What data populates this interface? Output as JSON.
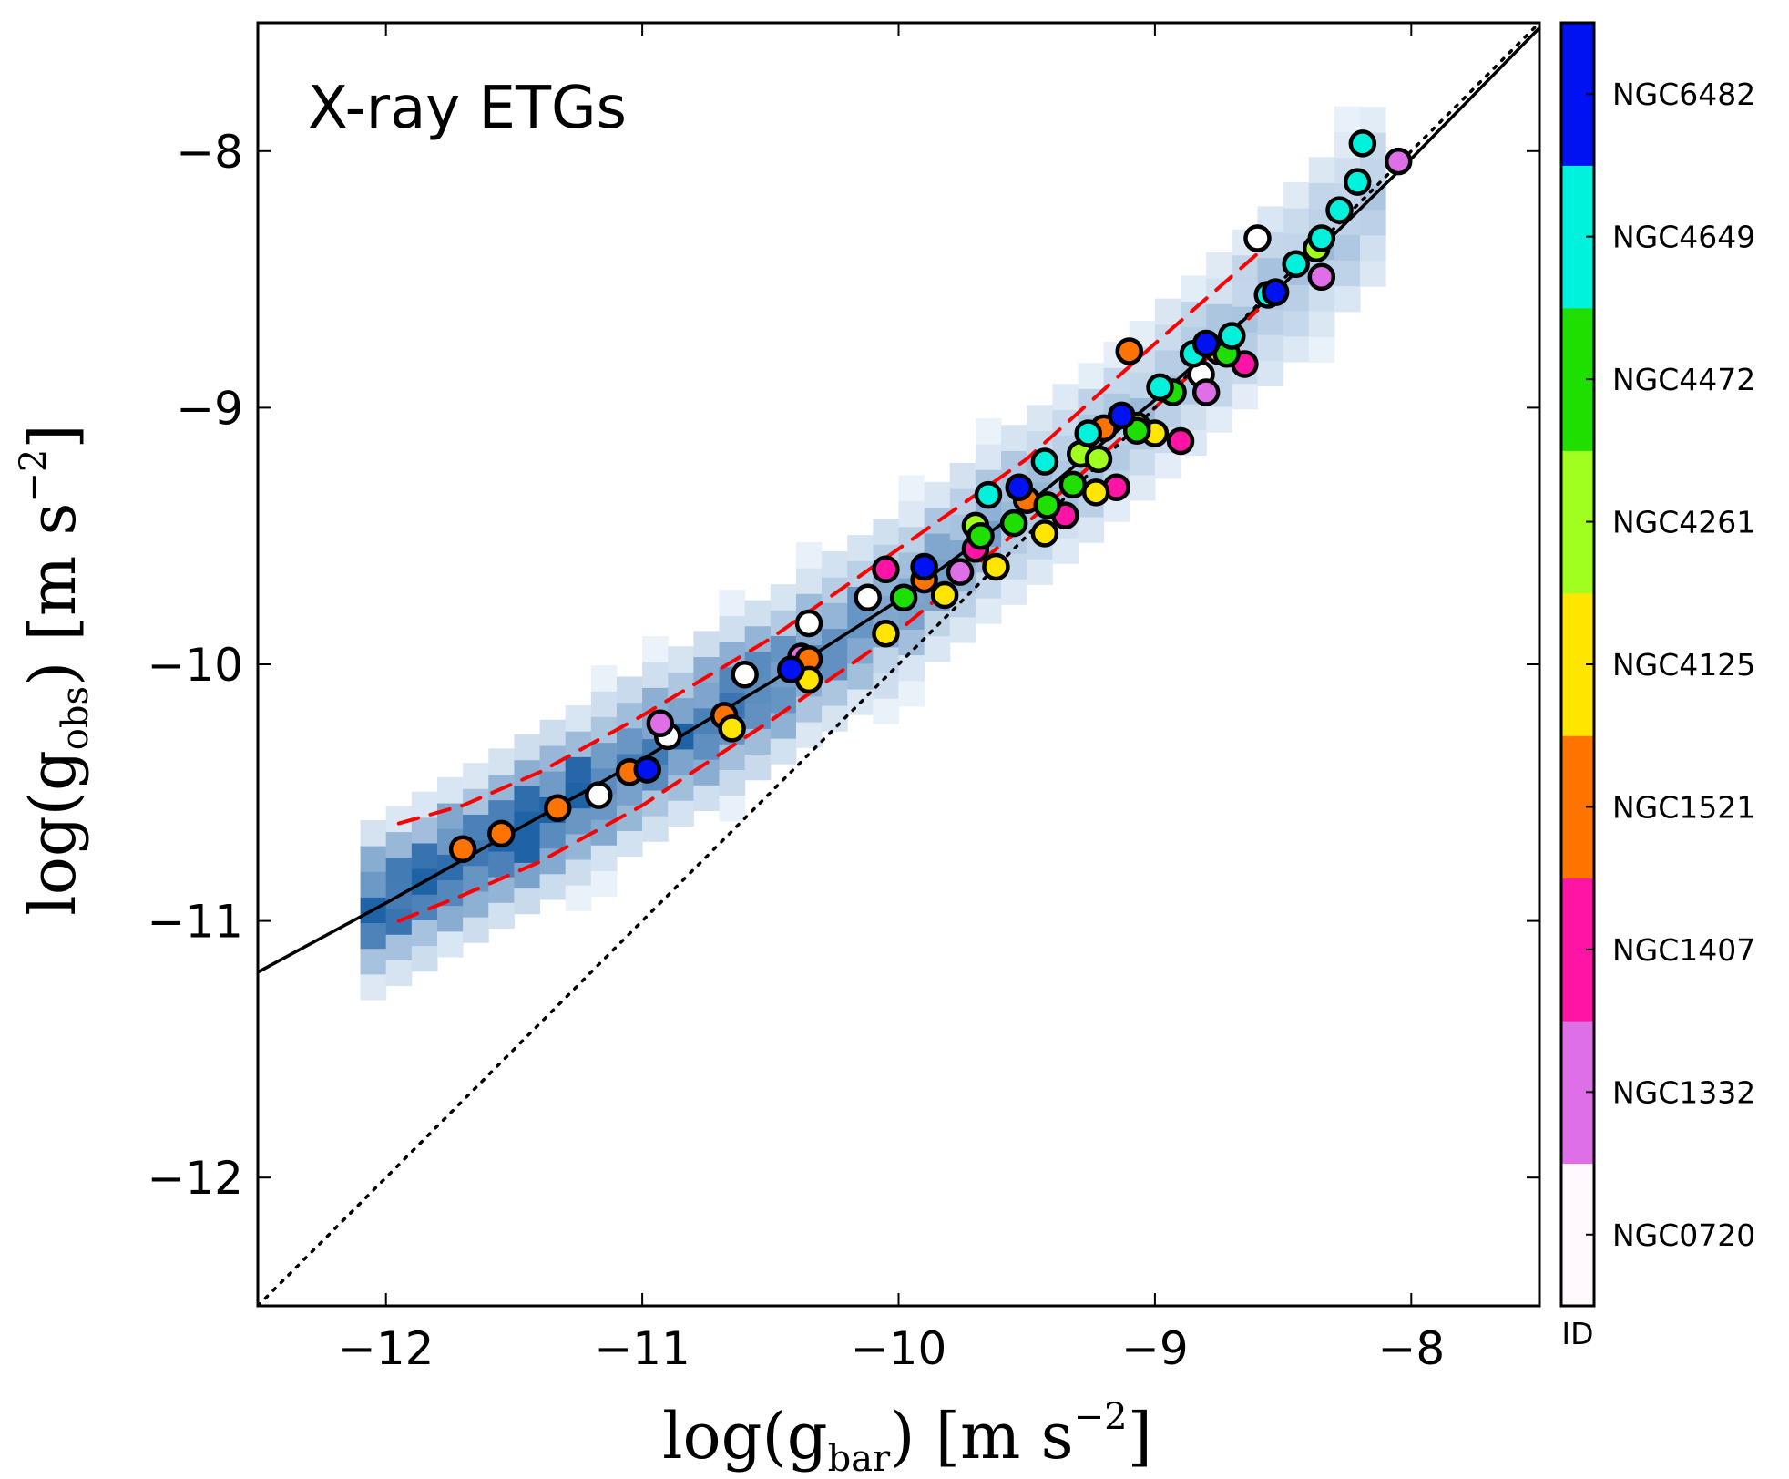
{
  "chart_data": {
    "type": "scatter",
    "title": "",
    "annotation": "X-ray ETGs",
    "xlabel": "log(g_bar) [m s^-2]",
    "ylabel": "log(g_obs) [m s^-2]",
    "xlabel_parts": {
      "pre": "log(g",
      "sub": "bar",
      "mid": ") [m s",
      "sup": "−2",
      "post": "]"
    },
    "ylabel_parts": {
      "pre": "log(g",
      "sub": "obs",
      "mid": ") [m s",
      "sup": "−2",
      "post": "]"
    },
    "xlim": [
      -12.5,
      -7.5
    ],
    "ylim": [
      -12.5,
      -7.5
    ],
    "xticks": [
      -12,
      -11,
      -10,
      -9,
      -8
    ],
    "yticks": [
      -12,
      -11,
      -10,
      -9,
      -8
    ],
    "xtick_labels": [
      "−12",
      "−11",
      "−10",
      "−9",
      "−8"
    ],
    "ytick_labels": [
      "−12",
      "−11",
      "−10",
      "−9",
      "−8"
    ],
    "colorbar": {
      "title": "ID",
      "labels": [
        "NGC0720",
        "NGC1332",
        "NGC1407",
        "NGC1521",
        "NGC4125",
        "NGC4261",
        "NGC4472",
        "NGC4649",
        "NGC6482"
      ],
      "colors": [
        "#fff8fc",
        "#df6fe6",
        "#ff14a6",
        "#ff7300",
        "#ffe500",
        "#a0ff1e",
        "#1edf00",
        "#00f2dc",
        "#0012f2"
      ]
    },
    "lines": [
      {
        "name": "mean relation",
        "style": "solid",
        "color": "#000000",
        "x": [
          -12.5,
          -12.0,
          -11.5,
          -11.0,
          -10.5,
          -10.0,
          -9.5,
          -9.0,
          -8.5,
          -8.0,
          -7.5
        ],
        "y": [
          -11.2,
          -10.93,
          -10.65,
          -10.37,
          -10.07,
          -9.75,
          -9.38,
          -8.97,
          -8.52,
          -8.03,
          -7.52
        ]
      },
      {
        "name": "upper scatter",
        "style": "dashed",
        "color": "#ff0000",
        "x": [
          -11.95,
          -11.7,
          -11.4,
          -11.0,
          -10.5,
          -10.0,
          -9.5,
          -9.0,
          -8.6
        ],
        "y": [
          -10.62,
          -10.55,
          -10.42,
          -10.2,
          -9.9,
          -9.55,
          -9.2,
          -8.75,
          -8.4
        ]
      },
      {
        "name": "lower scatter",
        "style": "dashed",
        "color": "#ff0000",
        "x": [
          -11.95,
          -11.7,
          -11.4,
          -11.0,
          -10.5,
          -10.0,
          -9.5,
          -9.0,
          -8.6
        ],
        "y": [
          -11.0,
          -10.9,
          -10.77,
          -10.55,
          -10.22,
          -9.87,
          -9.45,
          -9.0,
          -8.62
        ]
      },
      {
        "name": "one-to-one",
        "style": "dotted",
        "color": "#000000",
        "x": [
          -12.5,
          -7.5
        ],
        "y": [
          -12.5,
          -7.5
        ]
      }
    ],
    "series": [
      {
        "name": "NGC0720",
        "color": "#ffffff",
        "x": [
          -11.17,
          -10.9,
          -10.6,
          -10.35,
          -10.12,
          -8.6,
          -8.82
        ],
        "y": [
          -10.51,
          -10.28,
          -10.04,
          -9.84,
          -9.74,
          -8.34,
          -8.87
        ]
      },
      {
        "name": "NGC1332",
        "color": "#df6fe6",
        "x": [
          -10.93,
          -10.38,
          -9.76,
          -8.8,
          -8.35,
          -8.05
        ],
        "y": [
          -10.23,
          -9.97,
          -9.64,
          -8.94,
          -8.49,
          -8.04
        ]
      },
      {
        "name": "NGC1407",
        "color": "#ff14a6",
        "x": [
          -10.05,
          -9.7,
          -9.35,
          -9.15,
          -8.9,
          -8.65
        ],
        "y": [
          -9.63,
          -9.55,
          -9.42,
          -9.31,
          -9.13,
          -8.83
        ]
      },
      {
        "name": "NGC1521",
        "color": "#ff7300",
        "x": [
          -11.7,
          -11.55,
          -11.33,
          -11.05,
          -10.68,
          -10.35,
          -9.9,
          -9.5,
          -9.2,
          -9.1
        ],
        "y": [
          -10.72,
          -10.66,
          -10.56,
          -10.42,
          -10.2,
          -9.98,
          -9.67,
          -9.36,
          -9.08,
          -8.78
        ]
      },
      {
        "name": "NGC4125",
        "color": "#ffe500",
        "x": [
          -10.65,
          -10.35,
          -10.05,
          -9.82,
          -9.62,
          -9.43,
          -9.23,
          -9.0,
          -8.75
        ],
        "y": [
          -10.25,
          -10.06,
          -9.88,
          -9.73,
          -9.62,
          -9.49,
          -9.33,
          -9.1,
          -8.78
        ]
      },
      {
        "name": "NGC4261",
        "color": "#a0ff1e",
        "x": [
          -9.7,
          -9.29,
          -9.22,
          -9.07,
          -8.37
        ],
        "y": [
          -9.46,
          -9.18,
          -9.2,
          -9.07,
          -8.38
        ]
      },
      {
        "name": "NGC4472",
        "color": "#1edf00",
        "x": [
          -9.98,
          -9.68,
          -9.55,
          -9.42,
          -9.32,
          -9.07,
          -8.93,
          -8.72
        ],
        "y": [
          -9.74,
          -9.5,
          -9.45,
          -9.38,
          -9.3,
          -9.09,
          -8.94,
          -8.79
        ]
      },
      {
        "name": "NGC4649",
        "color": "#00f2dc",
        "x": [
          -9.65,
          -9.43,
          -9.26,
          -8.98,
          -8.85,
          -8.7,
          -8.56,
          -8.45,
          -8.35,
          -8.28,
          -8.21,
          -8.19
        ],
        "y": [
          -9.34,
          -9.21,
          -9.1,
          -8.92,
          -8.79,
          -8.72,
          -8.56,
          -8.44,
          -8.34,
          -8.23,
          -8.12,
          -7.97
        ]
      },
      {
        "name": "NGC6482",
        "color": "#0012f2",
        "x": [
          -10.98,
          -10.42,
          -9.9,
          -9.53,
          -9.13,
          -8.8,
          -8.53
        ],
        "y": [
          -10.41,
          -10.02,
          -9.62,
          -9.31,
          -9.03,
          -8.75,
          -8.55
        ]
      }
    ]
  }
}
